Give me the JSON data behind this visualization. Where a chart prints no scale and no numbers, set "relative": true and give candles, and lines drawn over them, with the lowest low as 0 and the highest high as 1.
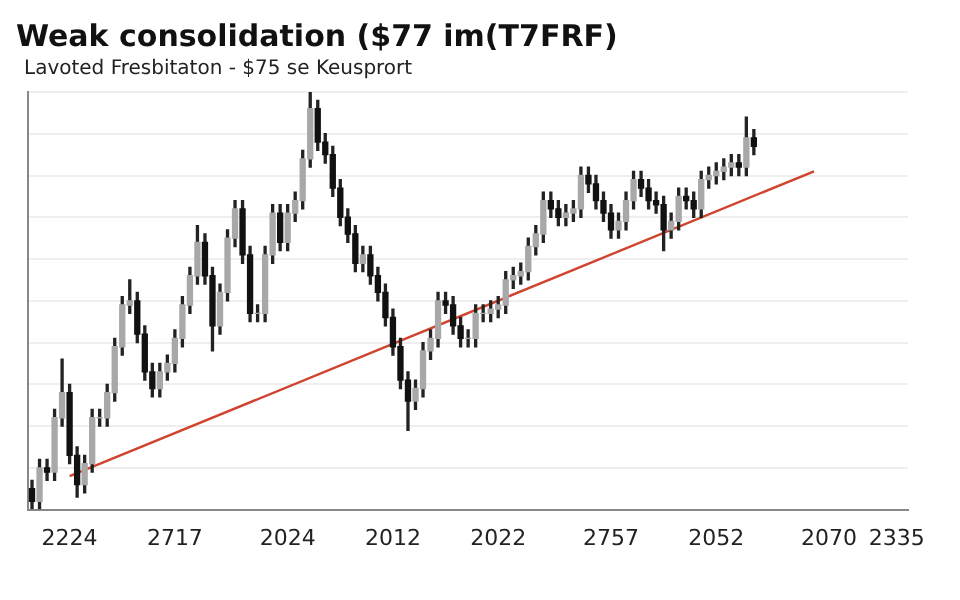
{
  "chart_data": {
    "type": "candlestick",
    "title": "Weak consolidation ($77 im(T7FRF)",
    "subtitle": "Lavoted Fresbitaton  -  $75 se Keusprort",
    "relative": true,
    "grid": "y",
    "legend": false,
    "categories": [
      null,
      null,
      null,
      null,
      null,
      "2224",
      null,
      null,
      null,
      null,
      null,
      null,
      null,
      null,
      null,
      null,
      null,
      null,
      null,
      "2717",
      null,
      null,
      null,
      null,
      null,
      null,
      null,
      null,
      null,
      null,
      null,
      null,
      null,
      null,
      "2024",
      null,
      null,
      null,
      null,
      null,
      null,
      null,
      null,
      null,
      null,
      null,
      null,
      null,
      "2012",
      null,
      null,
      null,
      null,
      null,
      null,
      null,
      null,
      null,
      null,
      null,
      null,
      null,
      "2022",
      null,
      null,
      null,
      null,
      null,
      null,
      null,
      null,
      null,
      null,
      null,
      null,
      null,
      null,
      "2757",
      null,
      null,
      null,
      null,
      null,
      null,
      null,
      null,
      null,
      null,
      null,
      null,
      null,
      "2052",
      null,
      null,
      null,
      null,
      null,
      null,
      null,
      null,
      null,
      null,
      null,
      null,
      null,
      null,
      "2070",
      null,
      null,
      null,
      null,
      null,
      null,
      null,
      null,
      "2335",
      null
    ],
    "ohlc": [
      [
        0.05,
        0.07,
        0.0,
        0.02
      ],
      [
        0.02,
        0.12,
        0.0,
        0.1
      ],
      [
        0.1,
        0.12,
        0.07,
        0.09
      ],
      [
        0.09,
        0.24,
        0.07,
        0.22
      ],
      [
        0.22,
        0.36,
        0.2,
        0.28
      ],
      [
        0.28,
        0.3,
        0.11,
        0.13
      ],
      [
        0.13,
        0.15,
        0.03,
        0.06
      ],
      [
        0.06,
        0.13,
        0.04,
        0.11
      ],
      [
        0.11,
        0.24,
        0.09,
        0.22
      ],
      [
        0.22,
        0.24,
        0.2,
        0.22
      ],
      [
        0.22,
        0.3,
        0.2,
        0.28
      ],
      [
        0.28,
        0.41,
        0.26,
        0.39
      ],
      [
        0.39,
        0.51,
        0.37,
        0.49
      ],
      [
        0.49,
        0.55,
        0.47,
        0.5
      ],
      [
        0.5,
        0.52,
        0.4,
        0.42
      ],
      [
        0.42,
        0.44,
        0.31,
        0.33
      ],
      [
        0.33,
        0.35,
        0.27,
        0.29
      ],
      [
        0.29,
        0.35,
        0.27,
        0.33
      ],
      [
        0.33,
        0.37,
        0.31,
        0.35
      ],
      [
        0.35,
        0.43,
        0.33,
        0.41
      ],
      [
        0.41,
        0.51,
        0.39,
        0.49
      ],
      [
        0.49,
        0.58,
        0.47,
        0.56
      ],
      [
        0.56,
        0.68,
        0.54,
        0.64
      ],
      [
        0.64,
        0.66,
        0.54,
        0.56
      ],
      [
        0.56,
        0.58,
        0.38,
        0.44
      ],
      [
        0.44,
        0.54,
        0.42,
        0.52
      ],
      [
        0.52,
        0.67,
        0.5,
        0.65
      ],
      [
        0.65,
        0.74,
        0.63,
        0.72
      ],
      [
        0.72,
        0.74,
        0.59,
        0.61
      ],
      [
        0.61,
        0.63,
        0.45,
        0.47
      ],
      [
        0.47,
        0.49,
        0.45,
        0.47
      ],
      [
        0.47,
        0.63,
        0.45,
        0.61
      ],
      [
        0.61,
        0.73,
        0.59,
        0.71
      ],
      [
        0.71,
        0.73,
        0.62,
        0.64
      ],
      [
        0.64,
        0.73,
        0.62,
        0.71
      ],
      [
        0.71,
        0.76,
        0.69,
        0.74
      ],
      [
        0.74,
        0.86,
        0.72,
        0.84
      ],
      [
        0.84,
        1.0,
        0.82,
        0.96
      ],
      [
        0.96,
        0.98,
        0.86,
        0.88
      ],
      [
        0.88,
        0.9,
        0.83,
        0.85
      ],
      [
        0.85,
        0.87,
        0.75,
        0.77
      ],
      [
        0.77,
        0.79,
        0.68,
        0.7
      ],
      [
        0.7,
        0.72,
        0.64,
        0.66
      ],
      [
        0.66,
        0.68,
        0.57,
        0.59
      ],
      [
        0.59,
        0.63,
        0.57,
        0.61
      ],
      [
        0.61,
        0.63,
        0.54,
        0.56
      ],
      [
        0.56,
        0.58,
        0.5,
        0.52
      ],
      [
        0.52,
        0.54,
        0.44,
        0.46
      ],
      [
        0.46,
        0.48,
        0.37,
        0.39
      ],
      [
        0.39,
        0.41,
        0.29,
        0.31
      ],
      [
        0.31,
        0.33,
        0.19,
        0.26
      ],
      [
        0.26,
        0.31,
        0.24,
        0.29
      ],
      [
        0.29,
        0.4,
        0.27,
        0.38
      ],
      [
        0.38,
        0.43,
        0.36,
        0.41
      ],
      [
        0.41,
        0.52,
        0.39,
        0.5
      ],
      [
        0.5,
        0.52,
        0.47,
        0.49
      ],
      [
        0.49,
        0.51,
        0.42,
        0.44
      ],
      [
        0.44,
        0.46,
        0.39,
        0.41
      ],
      [
        0.41,
        0.43,
        0.39,
        0.41
      ],
      [
        0.41,
        0.49,
        0.39,
        0.47
      ],
      [
        0.47,
        0.49,
        0.45,
        0.47
      ],
      [
        0.47,
        0.5,
        0.45,
        0.48
      ],
      [
        0.48,
        0.51,
        0.46,
        0.49
      ],
      [
        0.49,
        0.57,
        0.47,
        0.55
      ],
      [
        0.55,
        0.58,
        0.53,
        0.56
      ],
      [
        0.56,
        0.59,
        0.54,
        0.57
      ],
      [
        0.57,
        0.65,
        0.55,
        0.63
      ],
      [
        0.63,
        0.68,
        0.61,
        0.66
      ],
      [
        0.66,
        0.76,
        0.64,
        0.74
      ],
      [
        0.74,
        0.76,
        0.7,
        0.72
      ],
      [
        0.72,
        0.74,
        0.68,
        0.7
      ],
      [
        0.7,
        0.73,
        0.68,
        0.71
      ],
      [
        0.71,
        0.74,
        0.69,
        0.72
      ],
      [
        0.72,
        0.82,
        0.7,
        0.8
      ],
      [
        0.8,
        0.82,
        0.76,
        0.78
      ],
      [
        0.78,
        0.8,
        0.72,
        0.74
      ],
      [
        0.74,
        0.76,
        0.69,
        0.71
      ],
      [
        0.71,
        0.73,
        0.65,
        0.67
      ],
      [
        0.67,
        0.71,
        0.65,
        0.69
      ],
      [
        0.69,
        0.76,
        0.67,
        0.74
      ],
      [
        0.74,
        0.81,
        0.72,
        0.79
      ],
      [
        0.79,
        0.81,
        0.75,
        0.77
      ],
      [
        0.77,
        0.79,
        0.72,
        0.74
      ],
      [
        0.74,
        0.76,
        0.71,
        0.73
      ],
      [
        0.73,
        0.75,
        0.62,
        0.67
      ],
      [
        0.67,
        0.71,
        0.65,
        0.69
      ],
      [
        0.69,
        0.77,
        0.67,
        0.75
      ],
      [
        0.75,
        0.77,
        0.72,
        0.74
      ],
      [
        0.74,
        0.76,
        0.7,
        0.72
      ],
      [
        0.72,
        0.81,
        0.7,
        0.79
      ],
      [
        0.79,
        0.82,
        0.77,
        0.8
      ],
      [
        0.8,
        0.83,
        0.78,
        0.81
      ],
      [
        0.81,
        0.84,
        0.79,
        0.82
      ],
      [
        0.82,
        0.85,
        0.8,
        0.83
      ],
      [
        0.83,
        0.85,
        0.8,
        0.82
      ],
      [
        0.82,
        0.94,
        0.8,
        0.89
      ],
      [
        0.89,
        0.91,
        0.85,
        0.87
      ],
      null,
      null,
      null,
      null,
      null,
      null,
      null,
      null,
      null,
      null,
      null,
      null,
      null,
      null,
      null,
      null,
      null,
      null,
      null,
      null
    ],
    "series": [
      {
        "type": "line",
        "color": "#d0442f",
        "values": [
          null,
          null,
          null,
          null,
          null,
          0.08,
          null,
          null,
          null,
          null,
          null,
          null,
          null,
          null,
          null,
          null,
          null,
          null,
          null,
          null,
          null,
          null,
          null,
          null,
          null,
          null,
          null,
          null,
          null,
          null,
          null,
          null,
          null,
          null,
          null,
          null,
          null,
          null,
          null,
          null,
          null,
          null,
          null,
          null,
          null,
          null,
          null,
          null,
          null,
          null,
          null,
          null,
          null,
          null,
          null,
          null,
          null,
          null,
          null,
          null,
          null,
          null,
          null,
          null,
          null,
          null,
          null,
          null,
          null,
          null,
          null,
          null,
          null,
          null,
          null,
          null,
          null,
          null,
          null,
          null,
          null,
          null,
          null,
          null,
          null,
          null,
          null,
          null,
          null,
          null,
          null,
          null,
          null,
          null,
          null,
          null,
          null,
          null,
          null,
          null,
          null,
          null,
          null,
          null,
          0.81,
          null,
          null,
          null,
          null,
          null,
          null,
          null,
          null,
          null,
          null,
          null,
          null
        ]
      }
    ]
  }
}
